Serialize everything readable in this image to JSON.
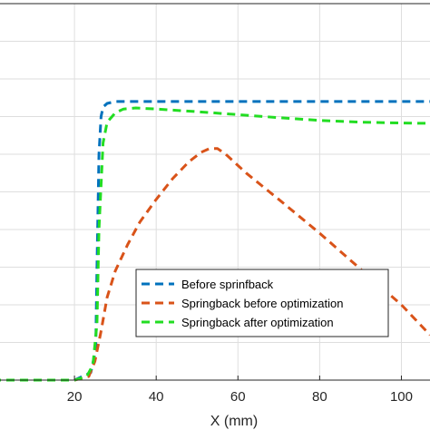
{
  "chart_data": {
    "type": "line",
    "xlabel": "X (mm)",
    "ylabel": "",
    "title": "",
    "xlim": [
      0,
      107
    ],
    "ylim": [
      0,
      100
    ],
    "x_ticks": [
      20,
      40,
      60,
      80,
      100
    ],
    "y_gridlines": [
      0,
      10,
      20,
      30,
      40,
      50,
      60,
      70,
      80,
      90,
      100
    ],
    "grid": true,
    "legend_position": "bottom-right",
    "series": [
      {
        "name": "Before sprinfback",
        "color": "#0072BD",
        "line_style": "dashed",
        "x": [
          0,
          20,
          24,
          25.2,
          25.5,
          26,
          26.5,
          27,
          28,
          30,
          35,
          50,
          70,
          90,
          107
        ],
        "y": [
          0,
          0,
          2,
          8,
          30,
          60,
          70,
          72.5,
          73.5,
          74,
          74,
          74,
          74,
          74,
          74
        ]
      },
      {
        "name": "Springback before optimization",
        "color": "#D95319",
        "line_style": "dashed",
        "x": [
          0,
          20,
          23.5,
          25,
          26.5,
          28,
          30,
          33,
          36,
          40,
          44,
          48,
          51,
          53,
          55,
          57,
          62,
          70,
          80,
          90,
          100,
          107
        ],
        "y": [
          0,
          0,
          1,
          5,
          13,
          22,
          29,
          36,
          42,
          48,
          53.5,
          58,
          60.5,
          61.5,
          61.5,
          60,
          55,
          48,
          39,
          29.5,
          20,
          12
        ]
      },
      {
        "name": "Springback after optimization",
        "color": "#22DD22",
        "line_style": "dashed",
        "x": [
          0,
          20,
          23,
          24.5,
          25.5,
          26,
          27,
          28,
          30,
          32,
          35,
          40,
          50,
          60,
          70,
          80,
          90,
          100,
          107
        ],
        "y": [
          0,
          0,
          1,
          4,
          15,
          40,
          63,
          68.5,
          71,
          72,
          72.3,
          72,
          71.3,
          70.5,
          69.7,
          69,
          68.5,
          68.3,
          68.2
        ]
      }
    ]
  }
}
